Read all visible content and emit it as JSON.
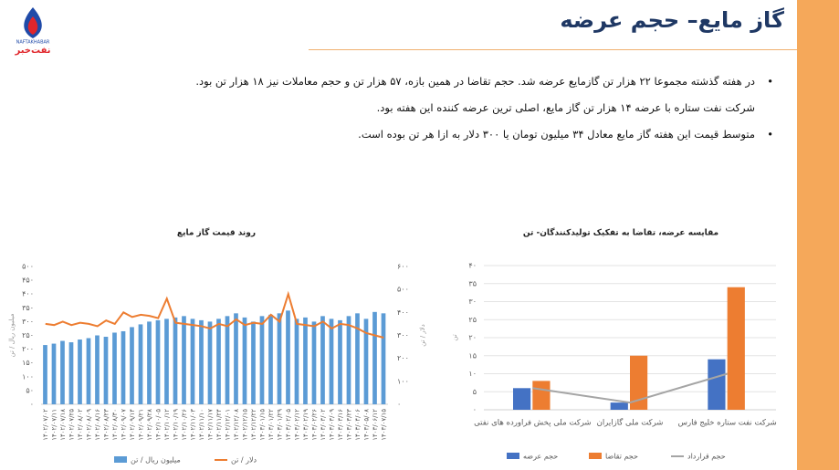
{
  "header": {
    "title": "گاز مایع– حجم عرضه",
    "logo_name": "نفت‌خبر",
    "logo_latin": "NAFTAKHABAR"
  },
  "bullets": [
    {
      "text": "در هفته گذشته مجموعا ۲۲ هزار تن گازمایع عرضه شد. حجم تقاضا در همین بازه، ۵۷ هزار تن و حجم معاملات نیز ۱۸ هزار تن بود.",
      "bullet": true
    },
    {
      "text": "شرکت نفت ستاره با عرضه ۱۴ هزار تن گاز مایع، اصلی ترین عرضه کننده این هفته بود.",
      "bullet": false
    },
    {
      "text": "متوسط قیمت این هفته گاز مایع معادل ۳۴ میلیون تومان یا ۳۰۰ دلار به ازا هر تن بوده است.",
      "bullet": true
    }
  ],
  "chart_data": [
    {
      "type": "bar",
      "title": "روند قیمت گاز مایع",
      "ylabel": "میلیون ریال / تن",
      "y2label": "دلار / تن",
      "grid": false,
      "legend": "bottom",
      "categories": [
        "۱۴۰۲/۰۷/۰۲",
        "۱۴۰۲/۰۷/۱۱",
        "۱۴۰۲/۰۷/۱۸",
        "۱۴۰۲/۰۷/۲۵",
        "۱۴۰۲/۰۸/۰۲",
        "۱۴۰۲/۰۸/۰۹",
        "۱۴۰۲/۰۸/۱۶",
        "۱۴۰۲/۰۸/۲۳",
        "۱۴۰۲/۰۸/۳۰",
        "۱۴۰۲/۰۹/۰۷",
        "۱۴۰۲/۰۹/۱۴",
        "۱۴۰۲/۰۹/۲۱",
        "۱۴۰۲/۰۹/۲۸",
        "۱۴۰۲/۱۰/۰۵",
        "۱۴۰۲/۱۰/۱۲",
        "۱۴۰۲/۱۰/۱۹",
        "۱۴۰۲/۱۰/۲۶",
        "۱۴۰۲/۱۱/۰۳",
        "۱۴۰۲/۱۱/۱۰",
        "۱۴۰۲/۱۱/۱۷",
        "۱۴۰۲/۱۱/۲۴",
        "۱۴۰۲/۱۲/۰۱",
        "۱۴۰۲/۱۲/۰۸",
        "۱۴۰۲/۱۲/۱۵",
        "۱۴۰۲/۱۲/۲۲",
        "۱۴۰۳/۰۱/۱۵",
        "۱۴۰۳/۰۱/۲۲",
        "۱۴۰۳/۰۱/۲۹",
        "۱۴۰۳/۰۲/۰۵",
        "۱۴۰۳/۰۲/۱۲",
        "۱۴۰۳/۰۲/۱۹",
        "۱۴۰۳/۰۲/۲۶",
        "۱۴۰۳/۰۳/۰۲",
        "۱۴۰۳/۰۳/۰۹",
        "۱۴۰۳/۰۳/۱۶",
        "۱۴۰۳/۰۳/۲۳",
        "۱۴۰۳/۰۴/۰۶",
        "۱۴۰۳/۰۵/۰۸",
        "۱۴۰۳/۰۶/۱۲",
        "۱۴۰۳/۰۷/۱۵"
      ],
      "series": [
        {
          "name": "میلیون ریال / تن",
          "color": "#5b9bd5",
          "values": [
            215,
            220,
            230,
            225,
            235,
            240,
            250,
            245,
            260,
            265,
            280,
            290,
            300,
            305,
            310,
            315,
            320,
            310,
            305,
            300,
            310,
            320,
            330,
            315,
            300,
            320,
            325,
            330,
            340,
            310,
            315,
            300,
            320,
            310,
            305,
            320,
            330,
            310,
            335,
            330
          ]
        },
        {
          "name": "دلار / تن",
          "color": "#ed7d31",
          "type": "line",
          "axis": "y2",
          "values": [
            350,
            345,
            360,
            345,
            355,
            350,
            340,
            365,
            350,
            400,
            380,
            390,
            385,
            375,
            460,
            355,
            350,
            345,
            340,
            330,
            350,
            340,
            370,
            345,
            355,
            350,
            390,
            360,
            480,
            350,
            345,
            340,
            360,
            330,
            350,
            345,
            330,
            310,
            300,
            290
          ]
        }
      ],
      "ylim": [
        0,
        500
      ],
      "yticks": [
        {
          "value": 0,
          "label": "۰"
        },
        {
          "value": 50,
          "label": "۵۰"
        },
        {
          "value": 100,
          "label": "۱۰۰"
        },
        {
          "value": 150,
          "label": "۱۵۰"
        },
        {
          "value": 200,
          "label": "۲۰۰"
        },
        {
          "value": 250,
          "label": "۲۵۰"
        },
        {
          "value": 300,
          "label": "۳۰۰"
        },
        {
          "value": 350,
          "label": "۳۵۰"
        },
        {
          "value": 400,
          "label": "۴۰۰"
        },
        {
          "value": 450,
          "label": "۴۵۰"
        },
        {
          "value": 500,
          "label": "۵۰۰"
        }
      ],
      "y2lim": [
        0,
        600
      ],
      "y2ticks": [
        {
          "value": 0,
          "label": "۰"
        },
        {
          "value": 100,
          "label": "۱۰۰"
        },
        {
          "value": 200,
          "label": "۲۰۰"
        },
        {
          "value": 300,
          "label": "۳۰۰"
        },
        {
          "value": 400,
          "label": "۴۰۰"
        },
        {
          "value": 500,
          "label": "۵۰۰"
        },
        {
          "value": 600,
          "label": "۶۰۰"
        }
      ]
    },
    {
      "type": "bar",
      "title": "مقایسه عرضه، تقاضا به تفکیک تولیدکنندگان- تن",
      "ylabel": "تن",
      "grid": true,
      "legend": "bottom",
      "categories": [
        "شرکت ملی پخش فراورده های نفتی",
        "شرکت ملی گازایران",
        "شرکت نفت ستاره خلیج فارس"
      ],
      "series": [
        {
          "name": "حجم عرضه",
          "color": "#4472c4",
          "values": [
            6,
            2,
            14
          ]
        },
        {
          "name": "حجم تقاضا",
          "color": "#ed7d31",
          "values": [
            8,
            15,
            34
          ]
        },
        {
          "name": "حجم قرارداد",
          "color": "#a5a5a5",
          "type": "line",
          "values": [
            6,
            2,
            10
          ]
        }
      ],
      "ylim": [
        0,
        40
      ],
      "yticks": [
        {
          "value": 0,
          "label": "۰"
        },
        {
          "value": 5,
          "label": "۵"
        },
        {
          "value": 10,
          "label": "۱۰"
        },
        {
          "value": 15,
          "label": "۱۵"
        },
        {
          "value": 20,
          "label": "۲۰"
        },
        {
          "value": 25,
          "label": "۲۵"
        },
        {
          "value": 30,
          "label": "۳۰"
        },
        {
          "value": 35,
          "label": "۳۵"
        },
        {
          "value": 40,
          "label": "۴۰"
        }
      ]
    }
  ]
}
